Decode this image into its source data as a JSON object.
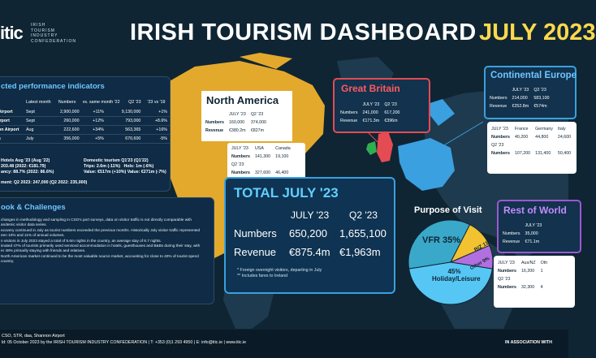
{
  "header": {
    "logo": "itic",
    "logo_lines": [
      "IRISH",
      "TOURISM",
      "INDUSTRY",
      "CONFEDERATION"
    ],
    "title": "IRISH TOURISM DASHBOARD",
    "month": "JULY 2023"
  },
  "kpi": {
    "title": "cted performance indicators",
    "headers": [
      "Latest month",
      "Numbers",
      "vs. same month '22",
      "Q2 '23",
      "'23 vs '19"
    ],
    "rows": [
      {
        "name": "Airport",
        "month": "Sept",
        "numbers": "2,900,000",
        "vs": "+11%",
        "q2": "9,130,000",
        "v19": "+1%"
      },
      {
        "name": "irport",
        "month": "Sept",
        "numbers": "260,000",
        "vs": "+12%",
        "q2": "793,000",
        "v19": "+8.6%"
      },
      {
        "name": "on Airport",
        "month": "Aug",
        "numbers": "222,600",
        "vs": "+34%",
        "q2": "563,365",
        "v19": "+16%"
      },
      {
        "name": "s",
        "month": "July",
        "numbers": "356,000",
        "vs": "+5%",
        "q2": "670,600",
        "v19": "-5%"
      }
    ],
    "hotels_title": "Hotels  Aug '23 (Aug '22)",
    "hotels_rate": "203.48  (2022: €181.79)",
    "hotels_occ": "ancy: 88.7%  (2022: 86.6%)",
    "dt_title": "Domestic tourism Q1'23 (Q1'22)",
    "dt_trips": "Trips: 2.6m (-11%)",
    "dt_hols": "Hols: 1m (-6%)",
    "dt_value": "Value: €517m (+10%)",
    "dt_hval": "Value: €271m (-7%)",
    "employment": "ment: Q2 2023: 247,000 (Q2 2022: 235,000)"
  },
  "outlook": {
    "title": "ook & Challenges",
    "lines": [
      "changes in methodology and sampling in CSO's port surveys, data on visitor traffic is not directly comparable with",
      "andemic visitor data series.",
      "ecovery continued in July as tourist numbers exceeded the previous months. Historically July visitor traffic represented",
      "een 10% and 11% of annual volumes.",
      "n visitors in July 2023 stayed a total of 5.6m nights in the country, an average stay of 8.7 nights.",
      "imated 47% of tourists primarily used serviced accommodation in hotels, guesthouses and B&Bs during their stay, with",
      "er 48% primarily staying with friends and relatives.",
      "North American market continued to be the most valuable source market, accounting for close to 40% of tourist spend",
      "country."
    ]
  },
  "north_america": {
    "title": "North America",
    "col_headers": [
      "JULY '23",
      "Q2 '23"
    ],
    "numbers_label": "Numbers",
    "numbers": [
      "160,000",
      "374,000"
    ],
    "revenue_label": "Revenue",
    "revenue": [
      "€380.2m",
      "€827m"
    ],
    "split_headers": [
      "JULY '23",
      "USA",
      "Canada"
    ],
    "split_rows": [
      {
        "label": "Numbers",
        "a": "141,300",
        "b": "19,100"
      },
      {
        "label": "Q2 '23",
        "a": "",
        "b": ""
      },
      {
        "label": "Numbers",
        "a": "327,600",
        "b": "46,400"
      }
    ]
  },
  "great_britain": {
    "title": "Great Britain",
    "col_headers": [
      "JULY '23",
      "Q2 '23"
    ],
    "numbers_label": "Numbers",
    "numbers": [
      "241,000",
      "617,200"
    ],
    "revenue_label": "Revenue",
    "revenue": [
      "€171.3m",
      "€396m"
    ]
  },
  "continental": {
    "title": "Continental Europe",
    "col_headers": [
      "JULY '23",
      "Q2 '23"
    ],
    "numbers_label": "Numbers",
    "numbers": [
      "214,000",
      "583,100"
    ],
    "revenue_label": "Revenue",
    "revenue": [
      "€252.8m",
      "€574m"
    ],
    "split_headers": [
      "JULY '23",
      "France",
      "Germany",
      "Italy"
    ],
    "split_rows": [
      {
        "label": "Numbers",
        "a": "40,200",
        "b": "44,800",
        "c": "24,600"
      },
      {
        "label": "Q2 '23",
        "a": "",
        "b": "",
        "c": ""
      },
      {
        "label": "Numbers",
        "a": "107,200",
        "b": "131,400",
        "c": "50,400"
      }
    ]
  },
  "total": {
    "title": "TOTAL JULY '23",
    "col_headers": [
      "JULY '23",
      "Q2 '23"
    ],
    "numbers_label": "Numbers",
    "numbers": [
      "650,200",
      "1,655,100"
    ],
    "revenue_label": "Revenue",
    "revenue": [
      "€875.4m",
      "€1,963m"
    ],
    "notes": [
      "* Foreign overnight visitors, departing in July",
      "** Includes fares to Ireland"
    ]
  },
  "purpose": {
    "title": "Purpose of Visit",
    "slices": [
      {
        "label": "VFR 35%",
        "value": 35,
        "color": "#3aa8c9"
      },
      {
        "label": "BIZ 11%",
        "value": 11,
        "color": "#f2c230"
      },
      {
        "label": "Other 9%",
        "value": 9,
        "color": "#b26fe0"
      },
      {
        "label": "45% Holiday/Leisure",
        "value": 45,
        "color": "#56c7f5"
      }
    ]
  },
  "rest_of_world": {
    "title": "Rest of World",
    "col_headers": [
      "JULY '23"
    ],
    "numbers_label": "Numbers",
    "numbers": [
      "35,000"
    ],
    "revenue_label": "Revenue",
    "revenue": [
      "€71.1m"
    ],
    "split_headers": [
      "JULY '23",
      "Aus/NZ",
      "Oth"
    ],
    "split_rows": [
      {
        "label": "Numbers",
        "a": "16,200",
        "b": "1"
      },
      {
        "label": "Q2 '23",
        "a": "",
        "b": ""
      },
      {
        "label": "Numbers",
        "a": "32,300",
        "b": "4"
      }
    ]
  },
  "footer": {
    "sources": "CSO, STR, daa, Shannon Airport",
    "published": "ld: 05 October 2023 by the IRISH TOURISM INDUSTRY CONFEDERATION  |  T: +353 (0)1 293 4950  |  E: info@itic.ie  |  www.itic.ie",
    "association": "IN ASSOCIATION WITH"
  },
  "colors": {
    "bg": "#0f2533",
    "map": "#e3a92c",
    "accent": "#6ec6ff",
    "gb": "#e54b53",
    "row": "#9b59d0"
  }
}
